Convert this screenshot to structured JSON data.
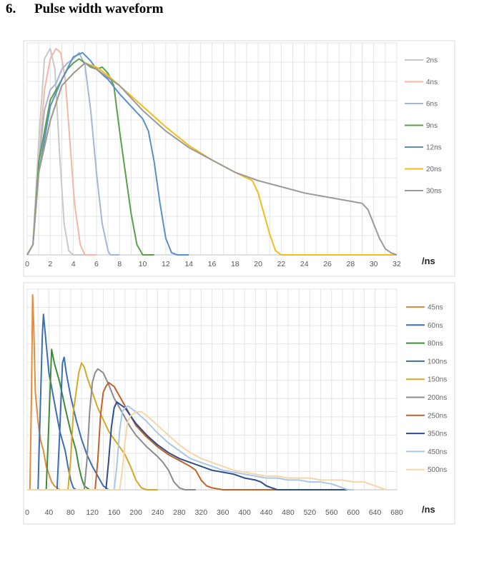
{
  "heading": {
    "number": "6.",
    "title": "Pulse width waveform"
  },
  "chart_data": [
    {
      "type": "line",
      "x_unit_label": "/ns",
      "xlim": [
        0,
        32
      ],
      "x_ticks": [
        "0",
        "2",
        "4",
        "6",
        "8",
        "10",
        "12",
        "14",
        "16",
        "18",
        "20",
        "22",
        "24",
        "26",
        "28",
        "30",
        "32"
      ],
      "ylim": [
        0,
        1
      ],
      "grid": true,
      "legend_position": "right",
      "series": [
        {
          "name": "2ns",
          "color": "#c9c9c9",
          "x": [
            0,
            0.5,
            1,
            1.5,
            2,
            2.4,
            2.8,
            3.2,
            3.6,
            4,
            4.4,
            5
          ],
          "y": [
            0,
            0.05,
            0.55,
            0.95,
            1.0,
            0.9,
            0.5,
            0.15,
            0.02,
            0,
            0,
            0
          ]
        },
        {
          "name": "4ns",
          "color": "#f2b8a4",
          "x": [
            0,
            0.5,
            1,
            1.5,
            2,
            2.5,
            2.9,
            3.3,
            3.7,
            4.1,
            4.6,
            5,
            5.4,
            6
          ],
          "y": [
            0,
            0.05,
            0.45,
            0.8,
            0.95,
            1.0,
            0.98,
            0.85,
            0.55,
            0.25,
            0.05,
            0,
            0,
            0
          ]
        },
        {
          "name": "6ns",
          "color": "#a7b5d6",
          "x": [
            0,
            0.5,
            1,
            1.5,
            2,
            2.5,
            3,
            3.5,
            4,
            4.5,
            5,
            5.5,
            6,
            6.5,
            7,
            7.2,
            8
          ],
          "y": [
            0,
            0.05,
            0.45,
            0.7,
            0.8,
            0.83,
            0.9,
            0.93,
            0.95,
            0.98,
            0.92,
            0.7,
            0.4,
            0.15,
            0.02,
            0,
            0
          ]
        },
        {
          "name": "9ns",
          "color": "#5aa04a",
          "x": [
            0,
            0.5,
            1,
            2,
            3,
            3.5,
            4,
            4.5,
            5,
            5.5,
            6,
            6.5,
            7,
            7.5,
            8,
            8.5,
            9,
            9.5,
            10,
            11
          ],
          "y": [
            0,
            0.05,
            0.45,
            0.75,
            0.85,
            0.9,
            0.93,
            0.95,
            0.93,
            0.91,
            0.9,
            0.91,
            0.88,
            0.82,
            0.6,
            0.4,
            0.2,
            0.05,
            0,
            0
          ]
        },
        {
          "name": "12ns",
          "color": "#5b8fc7",
          "x": [
            0,
            0.5,
            1,
            2,
            3,
            4,
            4.8,
            5.5,
            6,
            7,
            8,
            9,
            10,
            10.5,
            11,
            11.5,
            12,
            12.5,
            13,
            14
          ],
          "y": [
            0,
            0.05,
            0.4,
            0.72,
            0.85,
            0.96,
            0.98,
            0.94,
            0.9,
            0.85,
            0.78,
            0.72,
            0.66,
            0.6,
            0.45,
            0.25,
            0.08,
            0.01,
            0,
            0
          ]
        },
        {
          "name": "20ns",
          "color": "#f2bd1d",
          "x": [
            0,
            0.5,
            1,
            2,
            3,
            4,
            5,
            6,
            7,
            8,
            10,
            12,
            14,
            16,
            18,
            19.5,
            20,
            20.5,
            21,
            21.5,
            22,
            32
          ],
          "y": [
            0,
            0.05,
            0.4,
            0.65,
            0.82,
            0.88,
            0.93,
            0.91,
            0.87,
            0.82,
            0.72,
            0.62,
            0.53,
            0.46,
            0.4,
            0.36,
            0.3,
            0.2,
            0.1,
            0.02,
            0,
            0
          ]
        },
        {
          "name": "30ns",
          "color": "#9a9a9a",
          "x": [
            0,
            0.5,
            1,
            2,
            3,
            4,
            5,
            6,
            8,
            10,
            12,
            14,
            16,
            18,
            20,
            22,
            24,
            26,
            28,
            29,
            29.5,
            30,
            30.5,
            31,
            31.5,
            32
          ],
          "y": [
            0,
            0.05,
            0.4,
            0.65,
            0.82,
            0.88,
            0.93,
            0.9,
            0.82,
            0.7,
            0.6,
            0.52,
            0.46,
            0.4,
            0.36,
            0.33,
            0.3,
            0.28,
            0.26,
            0.25,
            0.22,
            0.15,
            0.08,
            0.03,
            0.01,
            0
          ]
        }
      ]
    },
    {
      "type": "line",
      "x_unit_label": "/ns",
      "xlim": [
        0,
        680
      ],
      "x_ticks": [
        "0",
        "40",
        "80",
        "120",
        "160",
        "200",
        "240",
        "280",
        "320",
        "360",
        "400",
        "440",
        "480",
        "520",
        "560",
        "600",
        "640",
        "680"
      ],
      "ylim": [
        0,
        1
      ],
      "grid": true,
      "legend_position": "right",
      "series": [
        {
          "name": "45ns",
          "color": "#e58c3b",
          "x": [
            0,
            5,
            8,
            10,
            12,
            15,
            20,
            25,
            30,
            35,
            40,
            45,
            50,
            55,
            60
          ],
          "y": [
            0,
            0,
            0.5,
            1.0,
            0.85,
            0.5,
            0.35,
            0.25,
            0.2,
            0.12,
            0.08,
            0.04,
            0.02,
            0.01,
            0
          ]
        },
        {
          "name": "60ns",
          "color": "#3c6fb0",
          "x": [
            0,
            20,
            24,
            28,
            30,
            35,
            40,
            50,
            60,
            70,
            75,
            80,
            85,
            90
          ],
          "y": [
            0,
            0,
            0.4,
            0.8,
            0.9,
            0.75,
            0.6,
            0.45,
            0.3,
            0.2,
            0.12,
            0.05,
            0.01,
            0
          ]
        },
        {
          "name": "80ns",
          "color": "#3e8c3a",
          "x": [
            0,
            35,
            40,
            45,
            50,
            60,
            70,
            80,
            90,
            95,
            100,
            105,
            110,
            115
          ],
          "y": [
            0,
            0,
            0.35,
            0.72,
            0.65,
            0.55,
            0.42,
            0.3,
            0.2,
            0.12,
            0.06,
            0.02,
            0.01,
            0
          ]
        },
        {
          "name": "100ns",
          "color": "#3c6fb0",
          "x": [
            0,
            55,
            60,
            65,
            68,
            72,
            80,
            90,
            100,
            110,
            120,
            130,
            140,
            145,
            150
          ],
          "y": [
            0,
            0,
            0.3,
            0.65,
            0.68,
            0.6,
            0.48,
            0.36,
            0.26,
            0.18,
            0.12,
            0.07,
            0.02,
            0.01,
            0
          ]
        },
        {
          "name": "150ns",
          "color": "#d4a925",
          "x": [
            0,
            75,
            80,
            85,
            90,
            95,
            100,
            105,
            110,
            120,
            130,
            140,
            150,
            160,
            170,
            180,
            190,
            200,
            210,
            220,
            230,
            240
          ],
          "y": [
            0,
            0,
            0.15,
            0.4,
            0.5,
            0.6,
            0.65,
            0.63,
            0.58,
            0.5,
            0.42,
            0.36,
            0.3,
            0.26,
            0.22,
            0.18,
            0.12,
            0.05,
            0.01,
            0,
            0,
            0
          ]
        },
        {
          "name": "200ns",
          "color": "#8c8c8c",
          "x": [
            0,
            105,
            110,
            115,
            120,
            125,
            130,
            140,
            150,
            160,
            170,
            180,
            190,
            200,
            220,
            240,
            250,
            260,
            270,
            280,
            290,
            310
          ],
          "y": [
            0,
            0,
            0.15,
            0.4,
            0.55,
            0.6,
            0.62,
            0.6,
            0.54,
            0.47,
            0.42,
            0.37,
            0.32,
            0.28,
            0.22,
            0.17,
            0.14,
            0.1,
            0.04,
            0.01,
            0,
            0
          ]
        },
        {
          "name": "250ns",
          "color": "#c0622a",
          "x": [
            0,
            125,
            130,
            135,
            140,
            145,
            150,
            160,
            170,
            180,
            190,
            200,
            220,
            240,
            260,
            280,
            300,
            310,
            320,
            330,
            340,
            360,
            380,
            400,
            420,
            440,
            460,
            480,
            520,
            560
          ],
          "y": [
            0,
            0,
            0.15,
            0.38,
            0.5,
            0.53,
            0.55,
            0.53,
            0.48,
            0.43,
            0.38,
            0.33,
            0.27,
            0.22,
            0.18,
            0.15,
            0.12,
            0.1,
            0.05,
            0.02,
            0.01,
            0,
            0,
            0,
            0,
            0,
            0,
            0,
            0,
            0
          ]
        },
        {
          "name": "350ns",
          "color": "#2e4d8f",
          "x": [
            0,
            145,
            150,
            155,
            160,
            165,
            170,
            180,
            190,
            200,
            220,
            240,
            260,
            280,
            300,
            320,
            340,
            360,
            380,
            400,
            420,
            430,
            440,
            450,
            460,
            480,
            520,
            560,
            600
          ],
          "y": [
            0,
            0,
            0.15,
            0.32,
            0.42,
            0.45,
            0.44,
            0.42,
            0.38,
            0.34,
            0.28,
            0.23,
            0.19,
            0.16,
            0.14,
            0.12,
            0.1,
            0.09,
            0.08,
            0.06,
            0.05,
            0.04,
            0.02,
            0.01,
            0,
            0,
            0,
            0,
            0
          ]
        },
        {
          "name": "450ns",
          "color": "#a9c8e6",
          "x": [
            0,
            160,
            165,
            170,
            175,
            180,
            185,
            190,
            200,
            220,
            240,
            260,
            280,
            300,
            320,
            340,
            360,
            380,
            400,
            420,
            440,
            460,
            480,
            500,
            520,
            540,
            560,
            570,
            580,
            590,
            600
          ],
          "y": [
            0,
            0,
            0.12,
            0.3,
            0.4,
            0.42,
            0.43,
            0.42,
            0.4,
            0.35,
            0.29,
            0.24,
            0.2,
            0.16,
            0.14,
            0.12,
            0.1,
            0.09,
            0.08,
            0.07,
            0.06,
            0.06,
            0.05,
            0.05,
            0.04,
            0.04,
            0.03,
            0.02,
            0.01,
            0,
            0
          ]
        },
        {
          "name": "500ns",
          "color": "#f5d6a8",
          "x": [
            0,
            170,
            175,
            180,
            185,
            190,
            200,
            210,
            220,
            240,
            260,
            280,
            300,
            320,
            340,
            360,
            380,
            400,
            420,
            440,
            460,
            480,
            500,
            520,
            540,
            560,
            580,
            600,
            620,
            630,
            640,
            650,
            660
          ],
          "y": [
            0,
            0,
            0.1,
            0.25,
            0.35,
            0.38,
            0.4,
            0.4,
            0.38,
            0.33,
            0.28,
            0.23,
            0.19,
            0.16,
            0.14,
            0.12,
            0.1,
            0.09,
            0.08,
            0.07,
            0.07,
            0.06,
            0.06,
            0.06,
            0.05,
            0.05,
            0.05,
            0.04,
            0.04,
            0.03,
            0.02,
            0.01,
            0
          ]
        }
      ]
    }
  ]
}
